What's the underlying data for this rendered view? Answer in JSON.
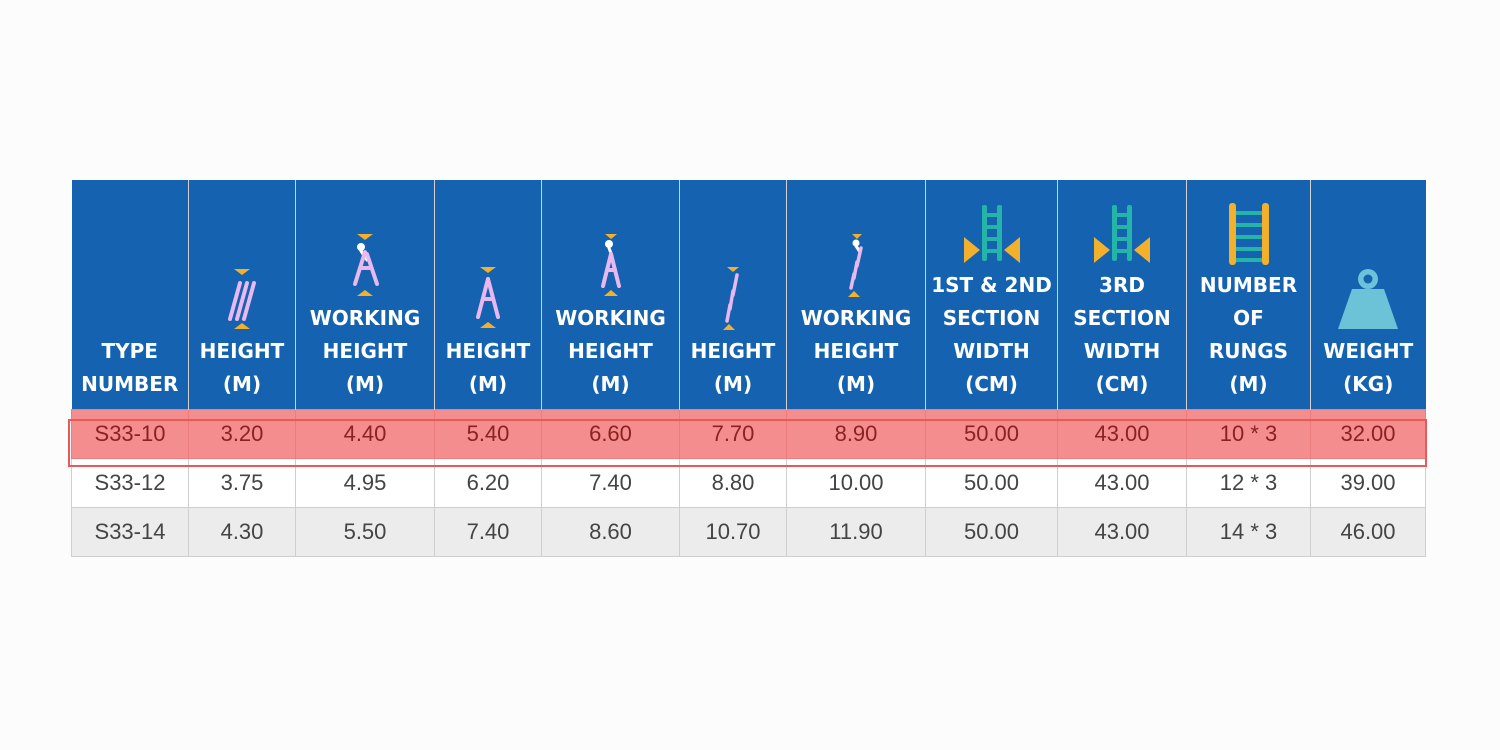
{
  "table": {
    "columns": [
      {
        "lines": [
          "TYPE",
          "NUMBER"
        ],
        "icon": "none"
      },
      {
        "lines": [
          "HEIGHT",
          "(M)"
        ],
        "icon": "folded-ladder-icon"
      },
      {
        "lines": [
          "WORKING",
          "HEIGHT",
          "(M)"
        ],
        "icon": "person-with-folded-ladder-icon"
      },
      {
        "lines": [
          "HEIGHT",
          "(M)"
        ],
        "icon": "aframe-ladder-icon"
      },
      {
        "lines": [
          "WORKING",
          "HEIGHT",
          "(M)"
        ],
        "icon": "person-on-aframe-ladder-icon"
      },
      {
        "lines": [
          "HEIGHT",
          "(M)"
        ],
        "icon": "extended-ladder-icon"
      },
      {
        "lines": [
          "WORKING",
          "HEIGHT",
          "(M)"
        ],
        "icon": "person-on-extended-ladder-icon"
      },
      {
        "lines": [
          "1ST & 2ND",
          "SECTION",
          "WIDTH",
          "(CM)"
        ],
        "icon": "ladder-width-icon"
      },
      {
        "lines": [
          "3RD",
          "SECTION",
          "WIDTH",
          "(CM)"
        ],
        "icon": "ladder-width-icon"
      },
      {
        "lines": [
          "NUMBER",
          "OF",
          "RUNGS",
          "(M)"
        ],
        "icon": "ladder-rungs-icon"
      },
      {
        "lines": [
          "WEIGHT",
          "(KG)"
        ],
        "icon": "weight-icon"
      }
    ],
    "rows": [
      [
        "S33-10",
        "3.20",
        "4.40",
        "5.40",
        "6.60",
        "7.70",
        "8.90",
        "50.00",
        "43.00",
        "10 * 3",
        "32.00"
      ],
      [
        "S33-12",
        "3.75",
        "4.95",
        "6.20",
        "7.40",
        "8.80",
        "10.00",
        "50.00",
        "43.00",
        "12 * 3",
        "39.00"
      ],
      [
        "S33-14",
        "4.30",
        "5.50",
        "7.40",
        "8.60",
        "10.70",
        "11.90",
        "50.00",
        "43.00",
        "14 * 3",
        "46.00"
      ]
    ],
    "highlighted_row_index": 0
  },
  "colors": {
    "header_bg": "#1462b0",
    "header_text": "#ffffff",
    "highlight_bg": "#f48d8d",
    "highlight_text": "#8b2222",
    "highlight_border": "#e85a5a",
    "alt_row_bg": "#ececec",
    "icon_pink": "#e9b8ee",
    "icon_gold": "#f2b02c",
    "icon_teal": "#24b5a8",
    "icon_lightblue": "#6cc3d8"
  }
}
